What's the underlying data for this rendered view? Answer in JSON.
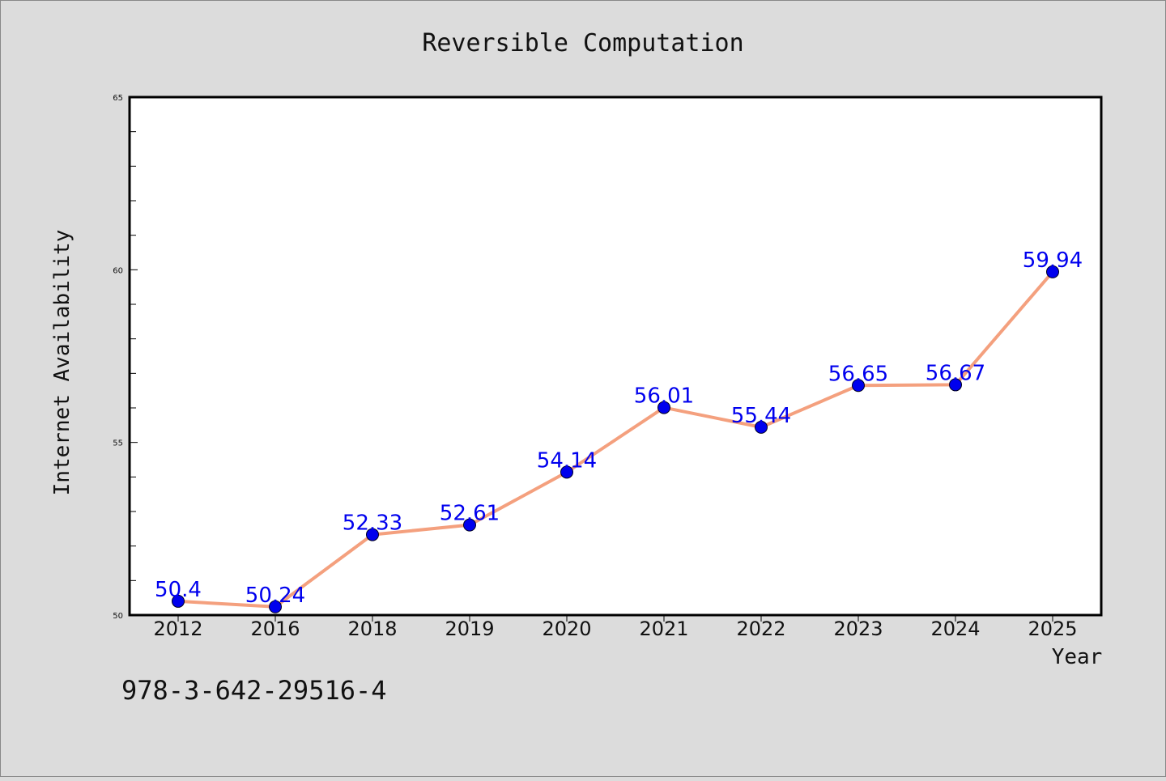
{
  "chart_data": {
    "type": "line",
    "title": "Reversible Computation",
    "xlabel": "Year",
    "ylabel": "Internet Availability",
    "categories": [
      "2012",
      "2016",
      "2018",
      "2019",
      "2020",
      "2021",
      "2022",
      "2023",
      "2024",
      "2025"
    ],
    "values": [
      50.4,
      50.24,
      52.33,
      52.61,
      54.14,
      56.01,
      55.44,
      56.65,
      56.67,
      59.94
    ],
    "data_labels": [
      "50.4",
      "50.24",
      "52.33",
      "52.61",
      "54.14",
      "56.01",
      "55.44",
      "56.65",
      "56.67",
      "59.94"
    ],
    "ylim": [
      50,
      65
    ],
    "yticks": [
      50,
      55,
      60,
      65
    ],
    "grid": false,
    "legend": "none",
    "colors": {
      "line": "#f4a07e",
      "marker": "#0000ee",
      "label": "#0000ee",
      "background": "#dcdcdc",
      "plot_background": "#ffffff"
    }
  },
  "footer": {
    "isbn": "978-3-642-29516-4"
  }
}
